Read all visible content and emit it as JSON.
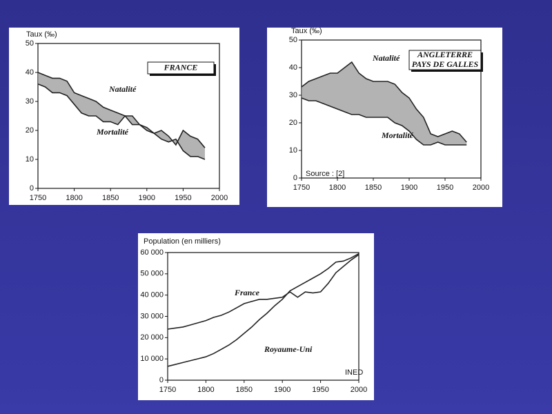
{
  "chart_data": [
    {
      "type": "line",
      "y_label": "Taux (‰)",
      "box_label": [
        "FRANCE"
      ],
      "xlim": [
        1750,
        2000
      ],
      "ylim": [
        0,
        50
      ],
      "xticks": [
        1750,
        1800,
        1850,
        1900,
        1950,
        2000
      ],
      "yticks": [
        0,
        10,
        20,
        30,
        40,
        50
      ],
      "band": true,
      "x": [
        1750,
        1760,
        1770,
        1780,
        1790,
        1800,
        1810,
        1820,
        1830,
        1840,
        1850,
        1860,
        1870,
        1880,
        1890,
        1900,
        1910,
        1920,
        1930,
        1940,
        1950,
        1960,
        1970,
        1980
      ],
      "series": [
        {
          "name": "Natalité",
          "color": "#222222",
          "values": [
            40,
            39,
            38,
            38,
            37,
            33,
            32,
            31,
            30,
            28,
            27,
            26,
            25,
            25,
            22,
            21,
            19,
            20,
            18,
            15,
            20,
            18,
            17,
            14
          ]
        },
        {
          "name": "Mortalité",
          "color": "#222222",
          "values": [
            36,
            35,
            33,
            33,
            32,
            29,
            26,
            25,
            25,
            23,
            23,
            22,
            25,
            22,
            22,
            20,
            19,
            17,
            16,
            17,
            13,
            11,
            11,
            10
          ]
        }
      ]
    },
    {
      "type": "line",
      "y_label": "Taux (‰)",
      "box_label": [
        "ANGLETERRE",
        "PAYS DE GALLES"
      ],
      "note": "Source : [2]",
      "xlim": [
        1750,
        2000
      ],
      "ylim": [
        0,
        50
      ],
      "xticks": [
        1750,
        1800,
        1850,
        1900,
        1950,
        2000
      ],
      "yticks": [
        0,
        10,
        20,
        30,
        40,
        50
      ],
      "band": true,
      "x": [
        1750,
        1760,
        1770,
        1780,
        1790,
        1800,
        1810,
        1820,
        1830,
        1840,
        1850,
        1860,
        1870,
        1880,
        1890,
        1900,
        1910,
        1920,
        1930,
        1940,
        1950,
        1960,
        1970,
        1980
      ],
      "series": [
        {
          "name": "Natalité",
          "color": "#222222",
          "values": [
            33,
            35,
            36,
            37,
            38,
            38,
            40,
            42,
            38,
            36,
            35,
            35,
            35,
            34,
            31,
            29,
            25,
            22,
            16,
            15,
            16,
            17,
            16,
            13
          ]
        },
        {
          "name": "Mortalité",
          "color": "#222222",
          "values": [
            29,
            28,
            28,
            27,
            26,
            25,
            24,
            23,
            23,
            22,
            22,
            22,
            22,
            20,
            19,
            17,
            14,
            12,
            12,
            13,
            12,
            12,
            12,
            12
          ]
        }
      ]
    },
    {
      "type": "line",
      "y_label": "Population (en milliers)",
      "note": "INED",
      "xlim": [
        1750,
        2000
      ],
      "ylim": [
        0,
        60000
      ],
      "xticks": [
        1750,
        1800,
        1850,
        1900,
        1950,
        2000
      ],
      "yticks": [
        0,
        {
          "value": 10000,
          "label": "10 000"
        },
        {
          "value": 20000,
          "label": "20 000"
        },
        {
          "value": 30000,
          "label": "30 000"
        },
        {
          "value": 40000,
          "label": "40 000"
        },
        {
          "value": 50000,
          "label": "50 000"
        },
        {
          "value": 60000,
          "label": "60 000"
        }
      ],
      "band": false,
      "x": [
        1750,
        1760,
        1770,
        1780,
        1790,
        1800,
        1810,
        1820,
        1830,
        1840,
        1850,
        1860,
        1870,
        1880,
        1890,
        1900,
        1910,
        1920,
        1930,
        1940,
        1950,
        1960,
        1970,
        1980,
        1990,
        2000
      ],
      "series": [
        {
          "name": "France",
          "color": "#222222",
          "values": [
            24000,
            24500,
            25000,
            26000,
            27000,
            28000,
            29500,
            30500,
            32000,
            34000,
            36000,
            37000,
            38000,
            38000,
            38500,
            39000,
            41500,
            39000,
            41500,
            41000,
            41500,
            45500,
            50500,
            53500,
            56500,
            59000
          ]
        },
        {
          "name": "Royaume-Uni",
          "color": "#222222",
          "values": [
            6500,
            7400,
            8300,
            9200,
            10100,
            11000,
            12500,
            14500,
            16500,
            19000,
            22000,
            25000,
            28500,
            31500,
            35000,
            38000,
            42000,
            44000,
            46000,
            48000,
            50000,
            52500,
            55500,
            56000,
            57500,
            59500
          ]
        }
      ]
    }
  ]
}
